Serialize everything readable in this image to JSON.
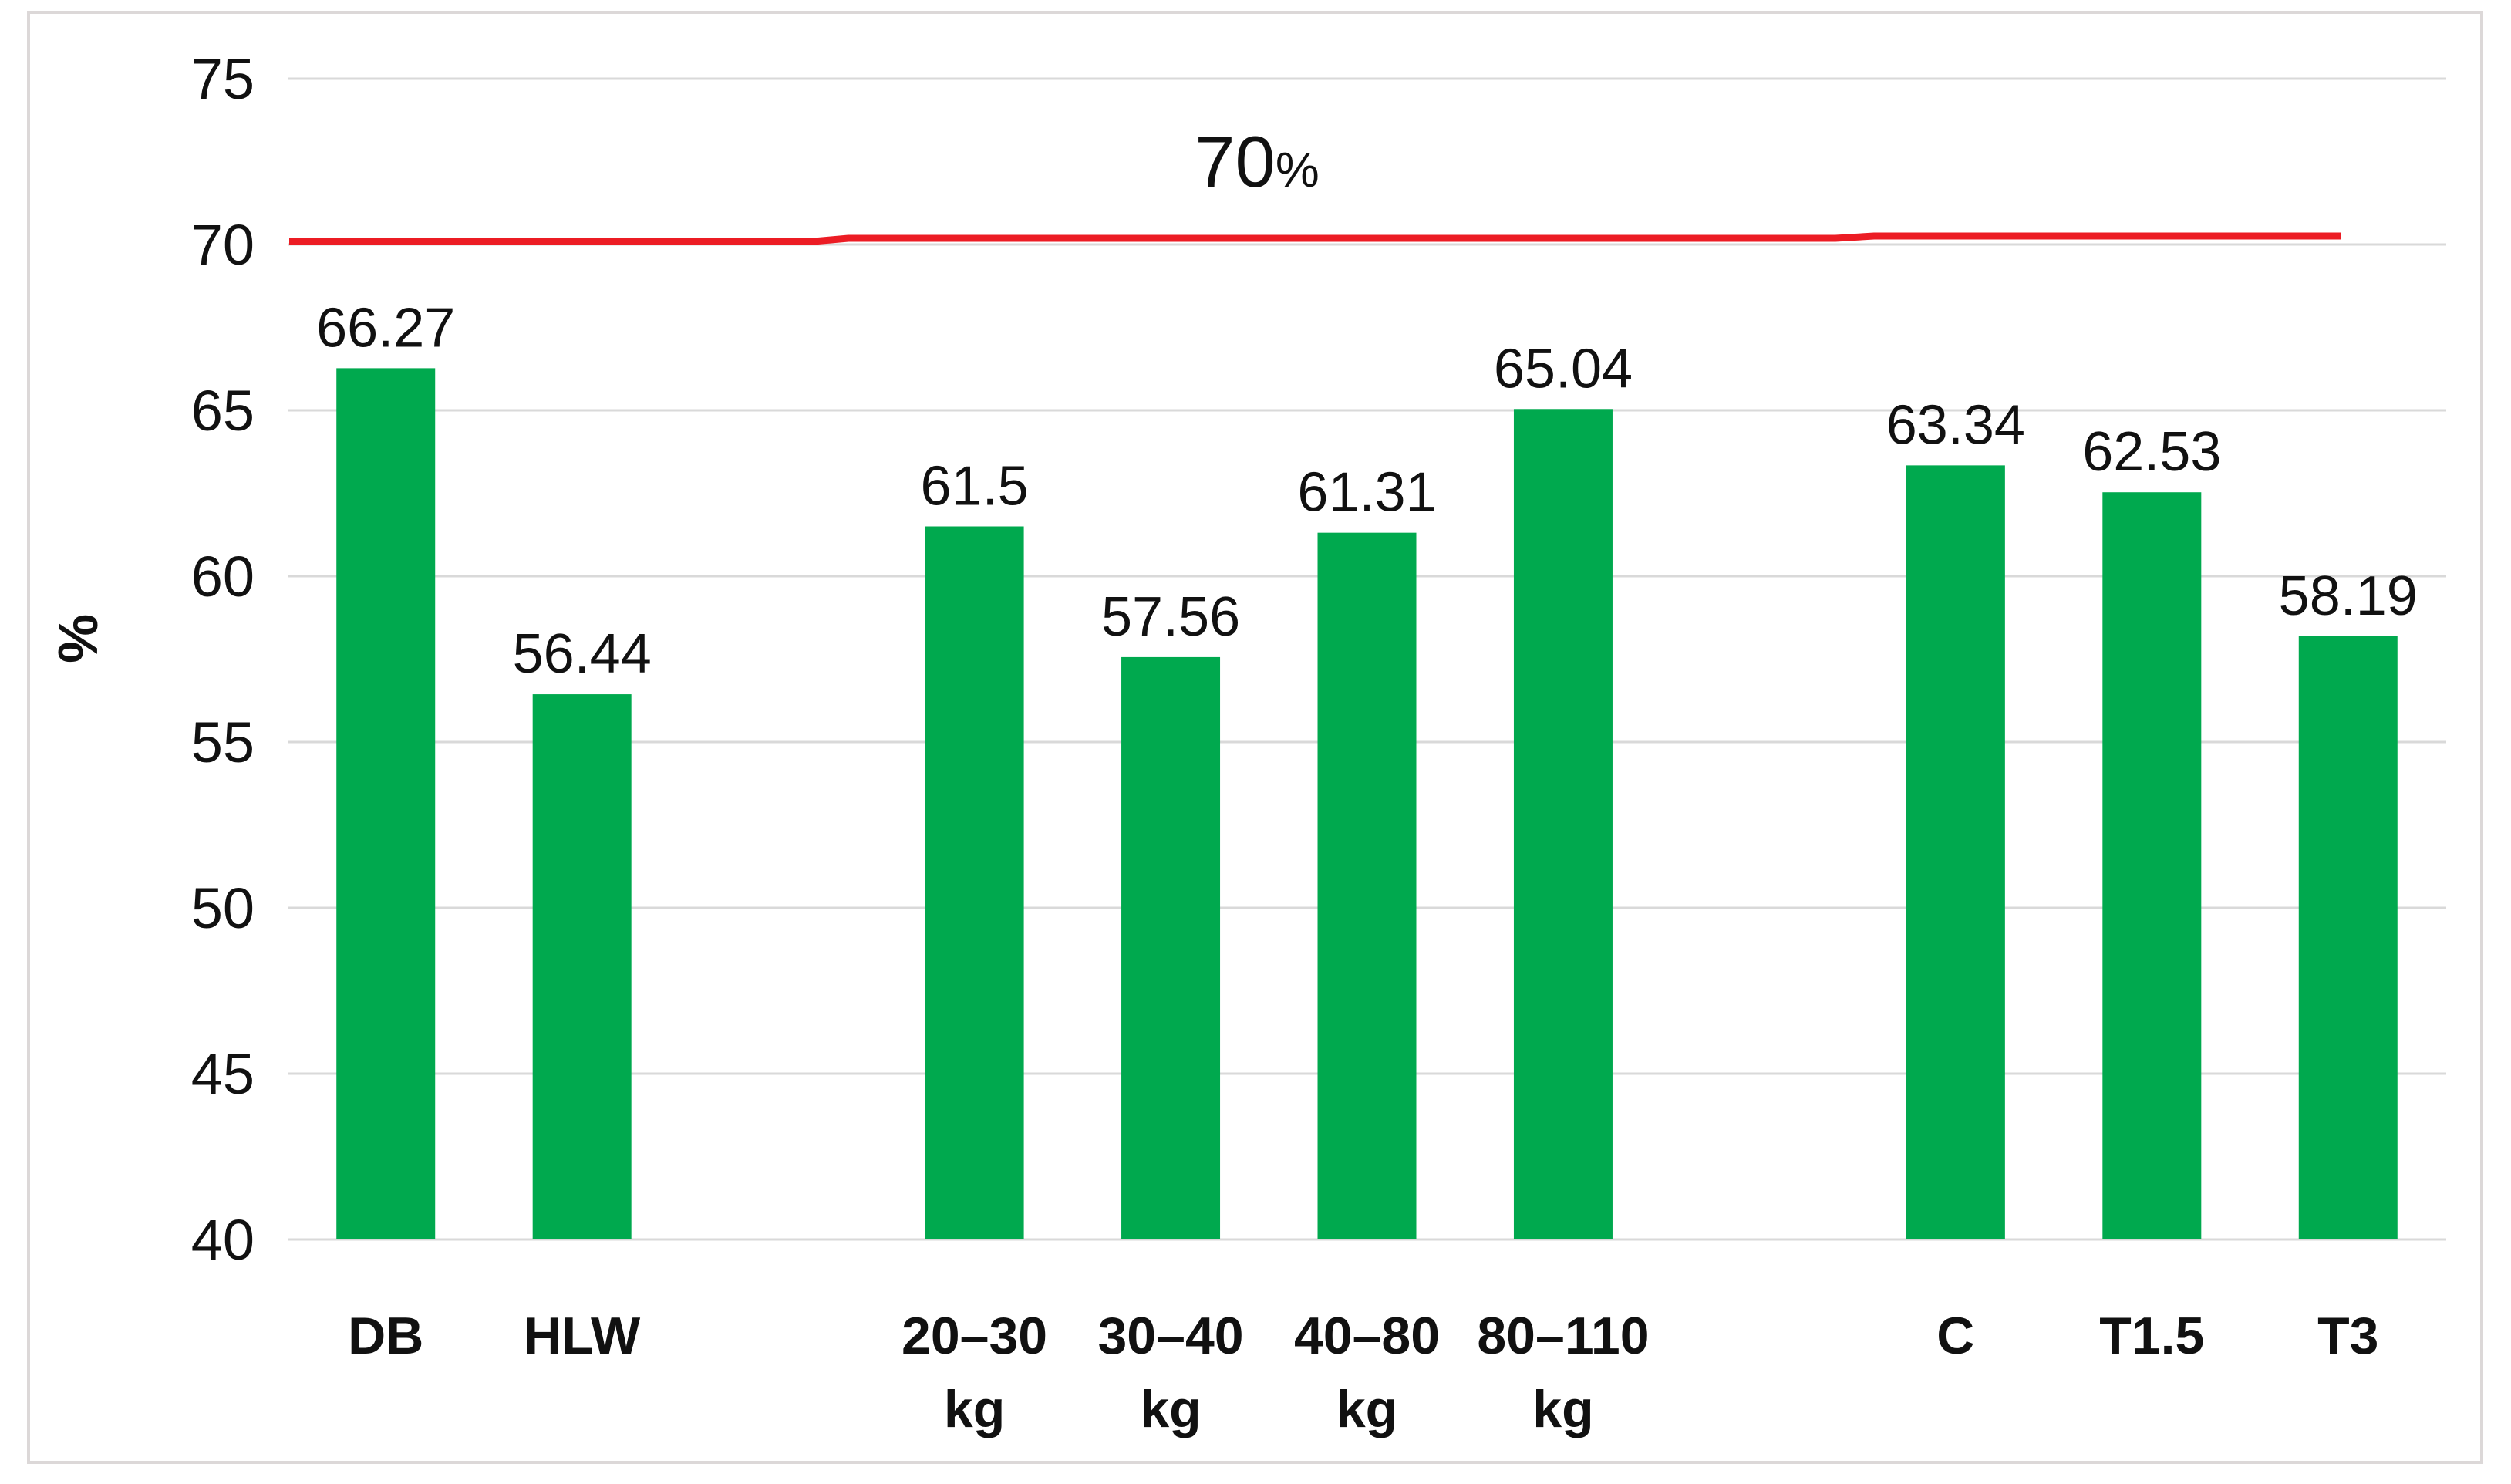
{
  "chart_data": {
    "type": "bar",
    "title": "",
    "xlabel": "",
    "ylabel": "%",
    "ylim": [
      40,
      75
    ],
    "yticks": [
      40,
      45,
      50,
      55,
      60,
      65,
      70,
      75
    ],
    "grid": true,
    "legend": "none",
    "bar_color": "#00A94E",
    "gridline_color": "#d9d9d9",
    "text_color": "#111111",
    "categories": [
      {
        "line1": "DB",
        "line2": ""
      },
      {
        "line1": "HLW",
        "line2": ""
      },
      {
        "line1": "20–30",
        "line2": "kg"
      },
      {
        "line1": "30–40",
        "line2": "kg"
      },
      {
        "line1": "40–80",
        "line2": "kg"
      },
      {
        "line1": "80–110",
        "line2": "kg"
      },
      {
        "line1": "C",
        "line2": ""
      },
      {
        "line1": "T1.5",
        "line2": ""
      },
      {
        "line1": "T3",
        "line2": ""
      }
    ],
    "values": [
      66.27,
      56.44,
      61.5,
      57.56,
      61.31,
      65.04,
      63.34,
      62.53,
      58.19
    ],
    "value_labels": [
      "66.27",
      "56.44",
      "61.5",
      "57.56",
      "61.31",
      "65.04",
      "63.34",
      "62.53",
      "58.19"
    ],
    "slot_indices": [
      0,
      1,
      3,
      4,
      5,
      6,
      8,
      9,
      10
    ],
    "total_slots": 11,
    "reference_line": {
      "value": 70,
      "label": "70",
      "label_suffix": "%",
      "line_color": "#EC1C24",
      "label_color": "#FF0000"
    }
  }
}
